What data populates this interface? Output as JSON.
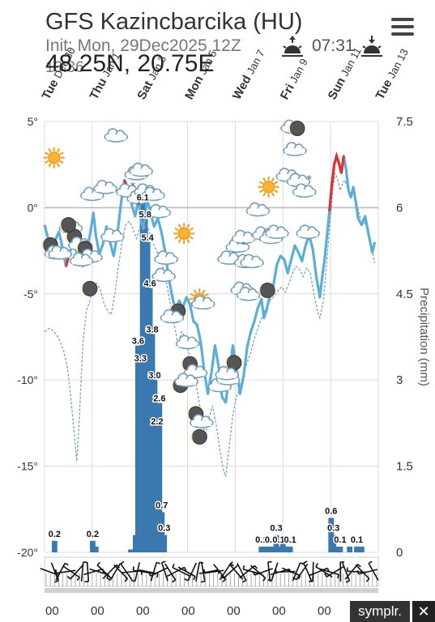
{
  "header": {
    "title": "GFS Kazincbarcika (HU)",
    "init": "Init: Mon, 29Dec2025 12Z",
    "coords": "48.25N, 20.75E",
    "time_overlay": "13:36",
    "sunrise": "07:31",
    "sunrise_icon": "sunrise-icon",
    "sunset_icon": "sunset-icon",
    "menu_icon": "hamburger-menu-icon"
  },
  "footer": {
    "hour_label": "00",
    "brand": "symplr.",
    "close_label": "✕"
  },
  "colors": {
    "temp_line": "#5aaed8",
    "temp_warm": "#e03030",
    "dew_line": "#6a9cc7",
    "precip_bar": "#3a78b0",
    "grid": "#dcdcdc",
    "zero_line": "#bbbbbb"
  },
  "chart_data": {
    "type": "line",
    "x_labels": [
      {
        "day": "Tue",
        "date": "Dec 30"
      },
      {
        "day": "Thu",
        "date": "Jan 1"
      },
      {
        "day": "Sat",
        "date": "Jan 3"
      },
      {
        "day": "Mon",
        "date": "Jan 5"
      },
      {
        "day": "Wed",
        "date": "Jan 7"
      },
      {
        "day": "Fri",
        "date": "Jan 9"
      },
      {
        "day": "Sun",
        "date": "Jan 11"
      },
      {
        "day": "Tue",
        "date": "Jan 13"
      }
    ],
    "left_axis": {
      "ticks": [
        "5°",
        "0°",
        "-5°",
        "-10°",
        "-15°",
        "-20°"
      ],
      "ylim": [
        -20,
        5
      ]
    },
    "right_axis": {
      "label": "Precipitation (mm)",
      "ticks": [
        "7.5",
        "6",
        "4.5",
        "3",
        "1.5",
        "0"
      ],
      "ylim": [
        0,
        7.5
      ]
    },
    "x_range": [
      0,
      14
    ],
    "temperature": [
      [
        0,
        -1
      ],
      [
        0.15,
        -1.8
      ],
      [
        0.3,
        -2.6
      ],
      [
        0.45,
        -1.9
      ],
      [
        0.6,
        -1.4
      ],
      [
        0.75,
        -2.3
      ],
      [
        0.9,
        -3.4
      ],
      [
        1.05,
        -2.6
      ],
      [
        1.2,
        -2.0
      ],
      [
        1.4,
        -2.8
      ],
      [
        1.6,
        -3.4
      ],
      [
        1.8,
        -2.4
      ],
      [
        1.95,
        -1.2
      ],
      [
        2.05,
        -0.3
      ],
      [
        2.15,
        -1.6
      ],
      [
        2.3,
        -2.7
      ],
      [
        2.45,
        -2.1
      ],
      [
        2.6,
        -1.1
      ],
      [
        2.75,
        -2.0
      ],
      [
        2.9,
        -2.8
      ],
      [
        3.05,
        -1.6
      ],
      [
        3.2,
        0.2
      ],
      [
        3.35,
        1.6
      ],
      [
        3.5,
        1.1
      ],
      [
        3.65,
        0.2
      ],
      [
        3.8,
        -0.5
      ],
      [
        3.95,
        0.5
      ],
      [
        4.05,
        -0.8
      ],
      [
        4.15,
        -1.2
      ],
      [
        4.3,
        0.4
      ],
      [
        4.4,
        0
      ],
      [
        4.5,
        -0.6
      ],
      [
        4.6,
        -1.1
      ],
      [
        4.75,
        -0.6
      ],
      [
        4.9,
        -1.4
      ],
      [
        5.05,
        -2.5
      ],
      [
        5.2,
        -4.0
      ],
      [
        5.35,
        -5.1
      ],
      [
        5.5,
        -6.0
      ],
      [
        5.65,
        -5.4
      ],
      [
        5.8,
        -5.8
      ],
      [
        5.95,
        -5.2
      ],
      [
        6.1,
        -5.6
      ],
      [
        6.25,
        -6.6
      ],
      [
        6.4,
        -6.8
      ],
      [
        6.55,
        -7.8
      ],
      [
        6.7,
        -9.5
      ],
      [
        6.85,
        -10.8
      ],
      [
        7.0,
        -9.6
      ],
      [
        7.15,
        -8.0
      ],
      [
        7.3,
        -9.2
      ],
      [
        7.45,
        -11.0
      ],
      [
        7.6,
        -11.3
      ],
      [
        7.75,
        -9.6
      ],
      [
        7.9,
        -8.0
      ],
      [
        8.05,
        -9.4
      ],
      [
        8.2,
        -10.8
      ],
      [
        8.35,
        -9.8
      ],
      [
        8.5,
        -8.1
      ],
      [
        8.65,
        -7.2
      ],
      [
        8.8,
        -6.6
      ],
      [
        8.95,
        -5.8
      ],
      [
        9.1,
        -5.3
      ],
      [
        9.2,
        -6.4
      ],
      [
        9.3,
        -6.0
      ],
      [
        9.45,
        -5.1
      ],
      [
        9.6,
        -4.5
      ],
      [
        9.75,
        -3.3
      ],
      [
        9.9,
        -2.8
      ],
      [
        10.05,
        -3.0
      ],
      [
        10.2,
        -3.8
      ],
      [
        10.35,
        -3.0
      ],
      [
        10.5,
        -2.2
      ],
      [
        10.65,
        -2.6
      ],
      [
        10.8,
        -3.1
      ],
      [
        10.95,
        -2.2
      ],
      [
        11.1,
        -1.6
      ],
      [
        11.25,
        -2.4
      ],
      [
        11.4,
        -4.0
      ],
      [
        11.55,
        -5.2
      ],
      [
        11.65,
        -4.0
      ],
      [
        11.75,
        -3.0
      ],
      [
        11.85,
        -1.6
      ],
      [
        11.95,
        -0.2
      ],
      [
        12.05,
        1.3
      ],
      [
        12.15,
        2.5
      ],
      [
        12.25,
        3.0
      ],
      [
        12.35,
        2.6
      ],
      [
        12.45,
        2.0
      ],
      [
        12.55,
        3.0
      ],
      [
        12.65,
        2.2
      ],
      [
        12.75,
        1.0
      ],
      [
        12.85,
        0.6
      ],
      [
        12.95,
        1.2
      ],
      [
        13.05,
        0.4
      ],
      [
        13.15,
        -0.6
      ],
      [
        13.3,
        -1.0
      ],
      [
        13.45,
        -0.5
      ],
      [
        13.6,
        -1.6
      ],
      [
        13.75,
        -2.6
      ],
      [
        13.85,
        -2.0
      ]
    ],
    "dewpoint": [
      [
        0,
        -7.2
      ],
      [
        0.2,
        -7.0
      ],
      [
        0.4,
        -7.2
      ],
      [
        0.6,
        -7.6
      ],
      [
        0.8,
        -8.3
      ],
      [
        0.95,
        -9.2
      ],
      [
        1.1,
        -11.0
      ],
      [
        1.25,
        -13.2
      ],
      [
        1.35,
        -14.7
      ],
      [
        1.45,
        -12.5
      ],
      [
        1.6,
        -8.0
      ],
      [
        1.75,
        -6.0
      ],
      [
        1.9,
        -5.4
      ],
      [
        2.05,
        -4.5
      ],
      [
        2.2,
        -4.4
      ],
      [
        2.35,
        -4.8
      ],
      [
        2.5,
        -5.6
      ],
      [
        2.65,
        -6.0
      ],
      [
        2.8,
        -6.2
      ],
      [
        2.95,
        -5.0
      ],
      [
        3.1,
        -3.4
      ],
      [
        3.25,
        -2.0
      ],
      [
        3.4,
        -1.0
      ],
      [
        3.55,
        -0.8
      ],
      [
        3.7,
        -1.2
      ],
      [
        3.85,
        -1.8
      ],
      [
        4.0,
        -1.1
      ],
      [
        4.15,
        -1.3
      ],
      [
        4.3,
        -1.0
      ],
      [
        4.5,
        -1.9
      ],
      [
        4.7,
        -2.5
      ],
      [
        4.9,
        -3.2
      ],
      [
        5.05,
        -3.8
      ],
      [
        5.2,
        -5.0
      ],
      [
        5.35,
        -6.2
      ],
      [
        5.5,
        -7.2
      ],
      [
        5.6,
        -8.0
      ],
      [
        5.75,
        -7.2
      ],
      [
        5.9,
        -7.5
      ],
      [
        6.05,
        -8.4
      ],
      [
        6.2,
        -9.0
      ],
      [
        6.35,
        -10.2
      ],
      [
        6.5,
        -11.4
      ],
      [
        6.65,
        -12.6
      ],
      [
        6.75,
        -13.2
      ],
      [
        6.9,
        -12.2
      ],
      [
        7.05,
        -11.5
      ],
      [
        7.2,
        -12.6
      ],
      [
        7.35,
        -14.0
      ],
      [
        7.5,
        -15.2
      ],
      [
        7.6,
        -15.6
      ],
      [
        7.75,
        -13.8
      ],
      [
        7.9,
        -12.0
      ],
      [
        8.05,
        -11.0
      ],
      [
        8.2,
        -10.4
      ],
      [
        8.35,
        -9.6
      ],
      [
        8.5,
        -9.0
      ],
      [
        8.65,
        -8.4
      ],
      [
        8.8,
        -7.6
      ],
      [
        8.95,
        -7.0
      ],
      [
        9.1,
        -6.4
      ],
      [
        9.3,
        -5.8
      ],
      [
        9.45,
        -5.4
      ],
      [
        9.6,
        -5.2
      ],
      [
        9.8,
        -4.8
      ],
      [
        9.95,
        -4.6
      ],
      [
        10.1,
        -4.9
      ],
      [
        10.25,
        -4.4
      ],
      [
        10.4,
        -3.8
      ],
      [
        10.55,
        -3.4
      ],
      [
        10.7,
        -3.6
      ],
      [
        10.85,
        -4.0
      ],
      [
        11.0,
        -3.5
      ],
      [
        11.15,
        -3.8
      ],
      [
        11.3,
        -5.0
      ],
      [
        11.45,
        -6.0
      ],
      [
        11.55,
        -6.4
      ],
      [
        11.7,
        -5.4
      ],
      [
        11.85,
        -3.0
      ],
      [
        12.0,
        -0.5
      ],
      [
        12.1,
        1.2
      ],
      [
        12.2,
        2.0
      ],
      [
        12.3,
        1.6
      ],
      [
        12.4,
        1.0
      ],
      [
        12.5,
        1.4
      ],
      [
        12.6,
        1.6
      ],
      [
        12.7,
        1.2
      ],
      [
        12.8,
        0.8
      ],
      [
        12.95,
        1.0
      ],
      [
        13.1,
        0.2
      ],
      [
        13.25,
        -0.6
      ],
      [
        13.4,
        -0.8
      ],
      [
        13.55,
        -1.3
      ],
      [
        13.7,
        -2.2
      ],
      [
        13.85,
        -3.2
      ]
    ],
    "warm_segments": [
      [
        0,
        0.08
      ],
      [
        0.9,
        1.1
      ],
      [
        3.25,
        3.6
      ],
      [
        11.95,
        12.55
      ]
    ],
    "precip_bars": [
      [
        0.42,
        0.2
      ],
      [
        2.02,
        0.2
      ],
      [
        2.15,
        0.1
      ],
      [
        3.62,
        0.05
      ],
      [
        3.82,
        0.3
      ],
      [
        3.92,
        3.6
      ],
      [
        4.02,
        3.3
      ],
      [
        4.12,
        6.1
      ],
      [
        4.22,
        5.8
      ],
      [
        4.32,
        5.4
      ],
      [
        4.42,
        4.6
      ],
      [
        4.52,
        3.8
      ],
      [
        4.62,
        3.0
      ],
      [
        4.72,
        2.2
      ],
      [
        4.82,
        2.6
      ],
      [
        4.92,
        0.7
      ],
      [
        5.02,
        0.3
      ],
      [
        9.1,
        0.1
      ],
      [
        9.3,
        0.1
      ],
      [
        9.5,
        0.1
      ],
      [
        9.72,
        0.3
      ],
      [
        9.82,
        0.1
      ],
      [
        10.0,
        0.15
      ],
      [
        10.1,
        0.1
      ],
      [
        10.3,
        0.1
      ],
      [
        12.02,
        0.6
      ],
      [
        12.12,
        0.3
      ],
      [
        12.22,
        0.1
      ],
      [
        12.4,
        0.1
      ],
      [
        12.8,
        0.1
      ],
      [
        13.1,
        0.1
      ],
      [
        13.3,
        0.1
      ]
    ],
    "bar_labels": [
      {
        "x": 0.42,
        "value": 0.2,
        "text": "0.2"
      },
      {
        "x": 2.02,
        "value": 0.2,
        "text": "0.2"
      },
      {
        "x": 4.12,
        "value": 6.1,
        "text": "6.1"
      },
      {
        "x": 4.22,
        "value": 5.8,
        "text": "5.8"
      },
      {
        "x": 4.32,
        "value": 5.4,
        "text": "5.4"
      },
      {
        "x": 4.42,
        "value": 4.6,
        "text": "4.6"
      },
      {
        "x": 4.52,
        "value": 3.8,
        "text": "3.8"
      },
      {
        "x": 3.92,
        "value": 3.6,
        "text": "3.6"
      },
      {
        "x": 4.02,
        "value": 3.3,
        "text": "3.3"
      },
      {
        "x": 4.62,
        "value": 3.0,
        "text": "3.0"
      },
      {
        "x": 4.82,
        "value": 2.6,
        "text": "2.6"
      },
      {
        "x": 4.72,
        "value": 2.2,
        "text": "2.2"
      },
      {
        "x": 4.92,
        "value": 0.7,
        "text": "0.7"
      },
      {
        "x": 5.02,
        "value": 0.3,
        "text": "0.3"
      },
      {
        "x": 9.1,
        "value": 0.1,
        "text": "0.1"
      },
      {
        "x": 9.5,
        "value": 0.1,
        "text": "0.1"
      },
      {
        "x": 9.72,
        "value": 0.3,
        "text": "0.3"
      },
      {
        "x": 9.82,
        "value": 0.1,
        "text": "0.1"
      },
      {
        "x": 10.3,
        "value": 0.1,
        "text": "0.1"
      },
      {
        "x": 12.02,
        "value": 0.6,
        "text": "0.6"
      },
      {
        "x": 12.12,
        "value": 0.3,
        "text": "0.3"
      },
      {
        "x": 12.4,
        "value": 0.1,
        "text": "0.1"
      },
      {
        "x": 13.1,
        "value": 0.1,
        "text": "0.1"
      }
    ],
    "weather_icons": [
      {
        "x": 0.4,
        "t": 2.9,
        "icon": "sun-icon"
      },
      {
        "x": 1.1,
        "t": -1.1,
        "icon": "cloud-icon"
      },
      {
        "x": 0.35,
        "t": -2.4,
        "icon": "moon-cloud-icon"
      },
      {
        "x": 0.65,
        "t": -2.6,
        "icon": "cloud-icon"
      },
      {
        "x": 1.35,
        "t": -1.9,
        "icon": "moon-cloud-icon"
      },
      {
        "x": 1.8,
        "t": -2.6,
        "icon": "moon-cloud-icon"
      },
      {
        "x": 1.9,
        "t": -4.7,
        "icon": "moon-icon"
      },
      {
        "x": 1.0,
        "t": -1.0,
        "icon": "moon-icon"
      },
      {
        "x": 1.55,
        "t": -3.0,
        "icon": "cloud-icon"
      },
      {
        "x": 2.0,
        "t": 0.8,
        "icon": "cloud-icon"
      },
      {
        "x": 2.55,
        "t": 1.2,
        "icon": "cloud-icon"
      },
      {
        "x": 2.85,
        "t": -1.6,
        "icon": "cloud-icon"
      },
      {
        "x": 3.0,
        "t": 4.2,
        "icon": "cloud-icon"
      },
      {
        "x": 3.5,
        "t": 1.0,
        "icon": "cloud-icon"
      },
      {
        "x": 3.85,
        "t": 2.0,
        "icon": "cloud-icon"
      },
      {
        "x": 4.05,
        "t": 2.2,
        "icon": "cloud-icon"
      },
      {
        "x": 3.95,
        "t": 0.6,
        "icon": "snow-icon"
      },
      {
        "x": 4.25,
        "t": 1.0,
        "icon": "cloud-icon"
      },
      {
        "x": 4.55,
        "t": 0.8,
        "icon": "cloud-icon"
      },
      {
        "x": 4.8,
        "t": -0.2,
        "icon": "cloud-icon"
      },
      {
        "x": 5.1,
        "t": -2.9,
        "icon": "cloud-icon"
      },
      {
        "x": 5.0,
        "t": -3.9,
        "icon": "cloud-icon"
      },
      {
        "x": 5.6,
        "t": -6.0,
        "icon": "moon-icon"
      },
      {
        "x": 5.35,
        "t": -6.3,
        "icon": "cloud-icon"
      },
      {
        "x": 5.85,
        "t": -1.5,
        "icon": "sun-icon"
      },
      {
        "x": 6.5,
        "t": -5.3,
        "icon": "sun-icon"
      },
      {
        "x": 6.65,
        "t": -5.5,
        "icon": "cloud-icon"
      },
      {
        "x": 6.0,
        "t": -7.8,
        "icon": "cloud-icon"
      },
      {
        "x": 5.7,
        "t": -10.3,
        "icon": "moon-icon"
      },
      {
        "x": 6.2,
        "t": -9.3,
        "icon": "moon-cloud-icon"
      },
      {
        "x": 5.95,
        "t": -10.0,
        "icon": "cloud-icon"
      },
      {
        "x": 6.45,
        "t": -12.2,
        "icon": "moon-cloud-icon"
      },
      {
        "x": 6.5,
        "t": -13.3,
        "icon": "moon-icon"
      },
      {
        "x": 7.35,
        "t": -10.3,
        "icon": "cloud-icon"
      },
      {
        "x": 7.7,
        "t": -9.9,
        "icon": "cloud-icon"
      },
      {
        "x": 7.95,
        "t": -9.0,
        "icon": "moon-icon"
      },
      {
        "x": 7.65,
        "t": -9.6,
        "icon": "cloud-icon"
      },
      {
        "x": 7.75,
        "t": -2.9,
        "icon": "cloud-icon"
      },
      {
        "x": 8.1,
        "t": -2.2,
        "icon": "cloud-icon"
      },
      {
        "x": 8.3,
        "t": -4.7,
        "icon": "cloud-icon"
      },
      {
        "x": 8.45,
        "t": -3.1,
        "icon": "cloud-icon"
      },
      {
        "x": 8.35,
        "t": -1.7,
        "icon": "snow-icon"
      },
      {
        "x": 8.55,
        "t": -5.0,
        "icon": "cloud-icon"
      },
      {
        "x": 8.7,
        "t": -3.1,
        "icon": "cloud-icon"
      },
      {
        "x": 8.95,
        "t": -0.1,
        "icon": "cloud-icon"
      },
      {
        "x": 9.2,
        "t": -1.5,
        "icon": "cloud-icon"
      },
      {
        "x": 9.4,
        "t": 1.2,
        "icon": "sun-icon"
      },
      {
        "x": 9.5,
        "t": -1.7,
        "icon": "cloud-icon"
      },
      {
        "x": 9.35,
        "t": -4.8,
        "icon": "moon-icon"
      },
      {
        "x": 9.75,
        "t": -1.4,
        "icon": "cloud-icon"
      },
      {
        "x": 10.2,
        "t": 1.9,
        "icon": "cloud-icon"
      },
      {
        "x": 10.4,
        "t": 4.7,
        "icon": "cloud-icon"
      },
      {
        "x": 10.6,
        "t": 4.6,
        "icon": "moon-icon"
      },
      {
        "x": 10.5,
        "t": 3.4,
        "icon": "cloud-icon"
      },
      {
        "x": 10.65,
        "t": 1.6,
        "icon": "cloud-icon"
      },
      {
        "x": 10.9,
        "t": 1.0,
        "icon": "cloud-icon"
      },
      {
        "x": 11.05,
        "t": -1.4,
        "icon": "cloud-icon"
      }
    ],
    "snow_markers": [
      [
        3.45,
        1.0
      ],
      [
        3.7,
        1.2
      ],
      [
        3.75,
        0.6
      ],
      [
        4.05,
        0.3
      ],
      [
        4.15,
        -0.3
      ],
      [
        8.3,
        -1.7
      ],
      [
        8.05,
        -4.8
      ],
      [
        11.1,
        1.6
      ]
    ],
    "wind_barbs": [
      0.35,
      1.2,
      5.2,
      3.0,
      0.6,
      2.3,
      4.8,
      1.5,
      6.0,
      0.3,
      3.9,
      5.5,
      2.1,
      0.8,
      4.1,
      6.2,
      1.8,
      3.3,
      0.2,
      5.0,
      2.7,
      4.4,
      1.0,
      5.8,
      3.6,
      0.5,
      2.0,
      4.9,
      1.4,
      6.1,
      3.0,
      0.9,
      5.3,
      2.4,
      4.0,
      1.1,
      5.6,
      3.4,
      0.7,
      2.8,
      4.6,
      1.9,
      6.0,
      3.1,
      0.4,
      5.1,
      2.2,
      4.3,
      1.6,
      5.9,
      3.7,
      0.3,
      2.6,
      4.7,
      1.2,
      5.4,
      3.2,
      0.8,
      2.9,
      4.2
    ]
  }
}
